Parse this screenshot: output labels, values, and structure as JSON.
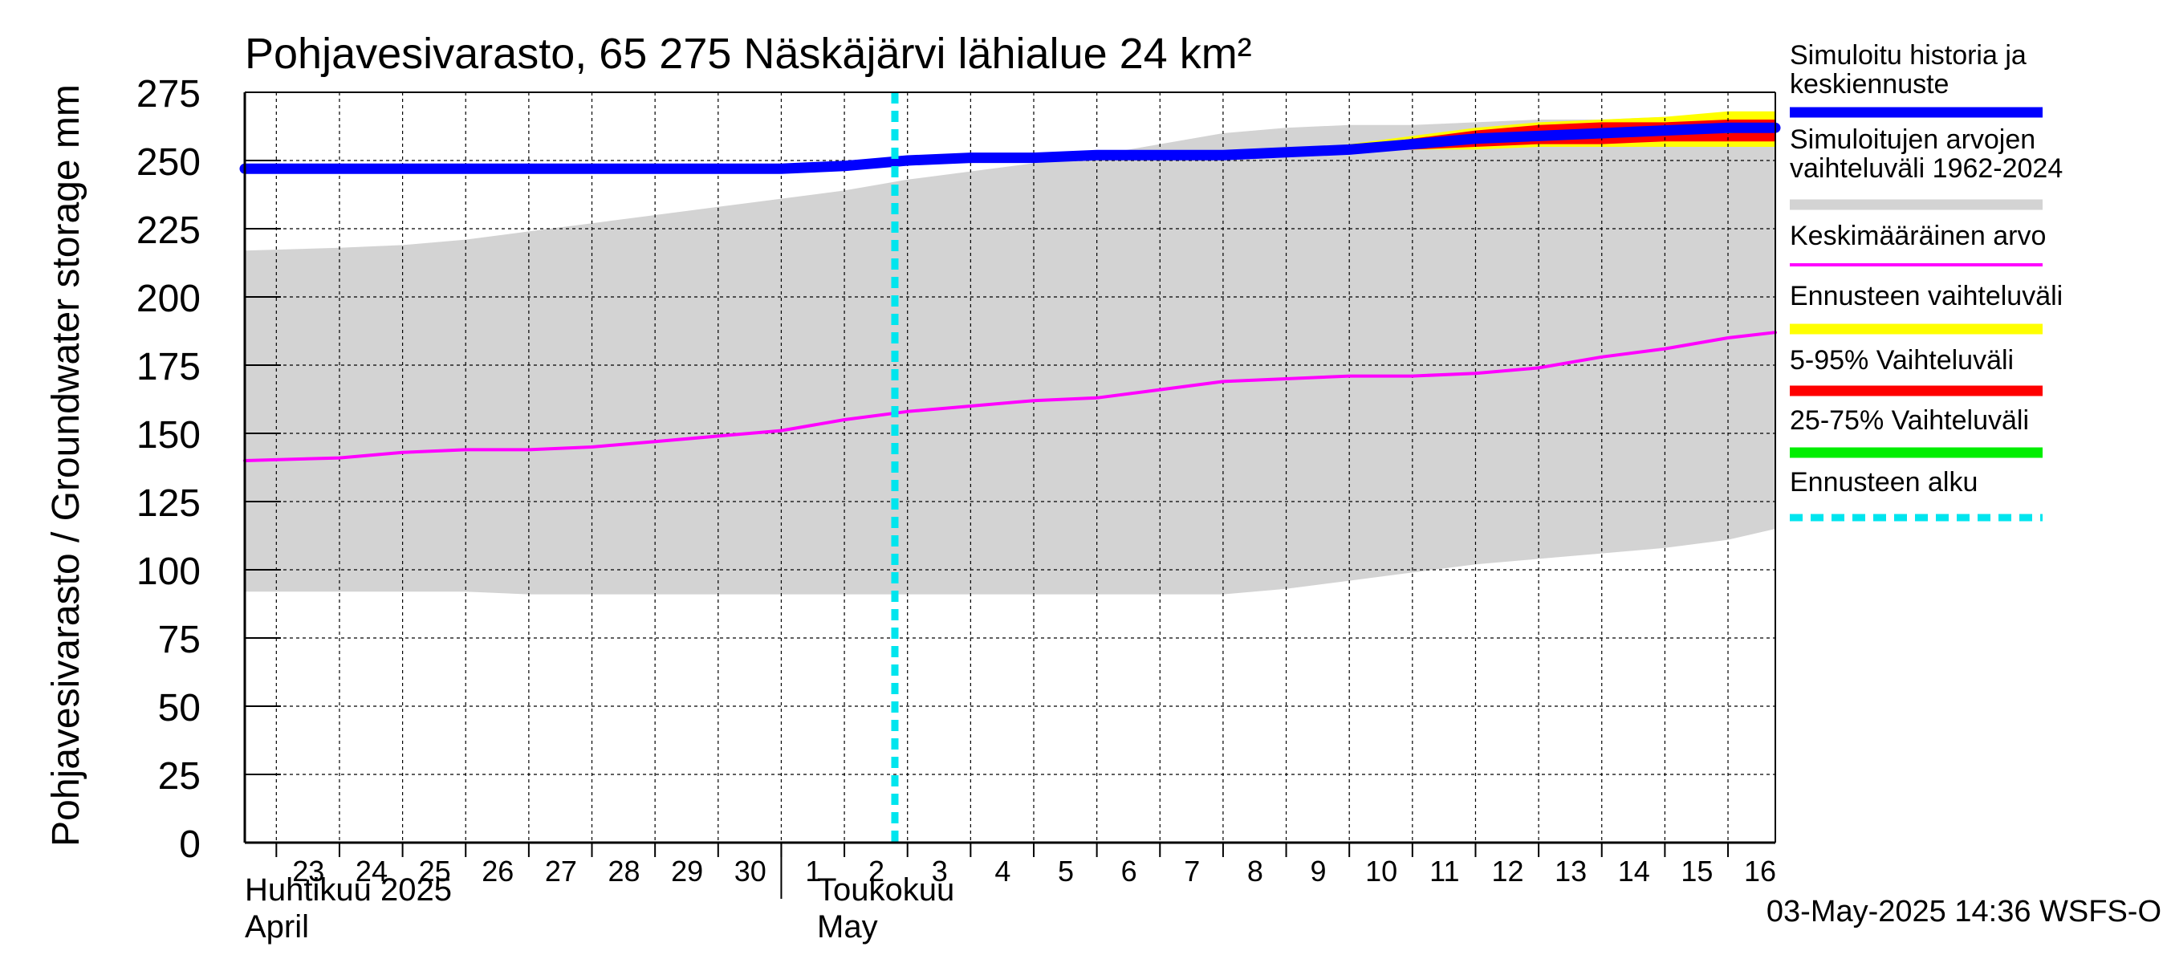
{
  "chart_data": {
    "type": "area",
    "title": "Pohjavesivarasto, 65 275 Näskäjärvi lähialue 24 km²",
    "ylabel": "Pohjavesivarasto / Groundwater storage   mm",
    "ylim": [
      0,
      275
    ],
    "yticks": [
      "0",
      "25",
      "50",
      "75",
      "100",
      "125",
      "150",
      "175",
      "200",
      "225",
      "250",
      "275"
    ],
    "x_start_day": 22.5,
    "x_end_day": 46.75,
    "day_labels": [
      "23",
      "24",
      "25",
      "26",
      "27",
      "28",
      "29",
      "30",
      "1",
      "2",
      "3",
      "4",
      "5",
      "6",
      "7",
      "8",
      "9",
      "10",
      "11",
      "12",
      "13",
      "14",
      "15",
      "16"
    ],
    "month_labels": [
      {
        "line1": "Huhtikuu  2025",
        "line2": "April",
        "day": 22.5
      },
      {
        "line1": "Toukokuu",
        "line2": "May",
        "day": 31
      }
    ],
    "month_divider_day": 31,
    "forecast_start_day": 32.8,
    "timestamp": "03-May-2025 14:36 WSFS-O",
    "series": [
      {
        "name": "Simuloitujen arvojen vaihteluväli 1962-2024",
        "kind": "band",
        "color": "#d3d3d3",
        "x": [
          22.5,
          24,
          25,
          26,
          27,
          28,
          29,
          30,
          31,
          32,
          33,
          34,
          35,
          36,
          37,
          38,
          39,
          40,
          41,
          42,
          43,
          44,
          45,
          46,
          46.75
        ],
        "upper": [
          217,
          218,
          219,
          221,
          224,
          227,
          230,
          233,
          236,
          239,
          243,
          246,
          249,
          252,
          256,
          260,
          262,
          263,
          263,
          264,
          265,
          265,
          266,
          266,
          266
        ],
        "lower": [
          92,
          92,
          92,
          92,
          91,
          91,
          91,
          91,
          91,
          91,
          91,
          91,
          91,
          91,
          91,
          91,
          93,
          96,
          99,
          102,
          104,
          106,
          108,
          111,
          115
        ]
      },
      {
        "name": "Ennusteen vaihteluväli",
        "kind": "band",
        "color": "#ffff00",
        "x": [
          32.8,
          34,
          35,
          36,
          37,
          38,
          39,
          40,
          41,
          42,
          43,
          44,
          45,
          46,
          46.75
        ],
        "upper": [
          250,
          251,
          252,
          252,
          253,
          253,
          254,
          256,
          259,
          262,
          264,
          265,
          266,
          268,
          268
        ],
        "lower": [
          250,
          251,
          251,
          251,
          252,
          252,
          252,
          253,
          254,
          254,
          255,
          255,
          255,
          255,
          255
        ]
      },
      {
        "name": "5-95% Vaihteluväli",
        "kind": "band",
        "color": "#ff0000",
        "x": [
          32.8,
          34,
          35,
          36,
          37,
          38,
          39,
          40,
          41,
          42,
          43,
          44,
          45,
          46,
          46.75
        ],
        "upper": [
          250,
          251,
          252,
          252,
          253,
          253,
          254,
          255,
          258,
          261,
          263,
          264,
          264,
          265,
          265
        ],
        "lower": [
          250,
          251,
          251,
          251,
          252,
          252,
          252,
          253,
          254,
          255,
          256,
          256,
          257,
          257,
          257
        ]
      },
      {
        "name": "25-75% Vaihteluväli",
        "kind": "band",
        "color": "#00ee00",
        "x": [
          32.8,
          34,
          35,
          36,
          37,
          38,
          39,
          40,
          41,
          42,
          43,
          44,
          45,
          46,
          46.75
        ],
        "upper": [
          250,
          251,
          252,
          252,
          252,
          253,
          253,
          254,
          256,
          258,
          260,
          261,
          262,
          262,
          263
        ],
        "lower": [
          250,
          251,
          251,
          252,
          252,
          252,
          253,
          253,
          255,
          257,
          258,
          259,
          260,
          260,
          261
        ]
      },
      {
        "name": "Keskimääräinen arvo",
        "kind": "line",
        "color": "#ff00ff",
        "width": 4,
        "x": [
          22.5,
          24,
          25,
          26,
          27,
          28,
          29,
          30,
          31,
          32,
          33,
          34,
          35,
          36,
          37,
          38,
          39,
          40,
          41,
          42,
          43,
          44,
          45,
          46,
          46.75
        ],
        "y": [
          140,
          141,
          143,
          144,
          144,
          145,
          147,
          149,
          151,
          155,
          158,
          160,
          162,
          163,
          166,
          169,
          170,
          171,
          171,
          172,
          174,
          178,
          181,
          185,
          187
        ]
      },
      {
        "name": "Simuloitu historia ja keskiennuste",
        "kind": "line",
        "color": "#0000ff",
        "width": 13,
        "x": [
          22.5,
          24,
          25,
          26,
          27,
          28,
          29,
          30,
          31,
          32,
          33,
          34,
          35,
          36,
          37,
          38,
          39,
          40,
          41,
          42,
          43,
          44,
          45,
          46,
          46.75
        ],
        "y": [
          247,
          247,
          247,
          247,
          247,
          247,
          247,
          247,
          247,
          248,
          250,
          251,
          251,
          252,
          252,
          252,
          253,
          254,
          256,
          258,
          259,
          260,
          261,
          262,
          262
        ]
      }
    ],
    "legend": [
      {
        "label": "Simuloitu historia ja keskiennuste",
        "color": "#0000ff",
        "style": "thick"
      },
      {
        "label": "Simuloitujen arvojen vaihteluväli 1962-2024",
        "color": "#d3d3d3",
        "style": "thick"
      },
      {
        "label": "Keskimääräinen arvo",
        "color": "#ff00ff",
        "style": "thin"
      },
      {
        "label": "Ennusteen vaihteluväli",
        "color": "#ffff00",
        "style": "thick"
      },
      {
        "label": "5-95% Vaihteluväli",
        "color": "#ff0000",
        "style": "thick"
      },
      {
        "label": "25-75% Vaihteluväli",
        "color": "#00ee00",
        "style": "thick"
      },
      {
        "label": "Ennusteen alku",
        "color": "#00e5ee",
        "style": "dashed"
      }
    ]
  }
}
